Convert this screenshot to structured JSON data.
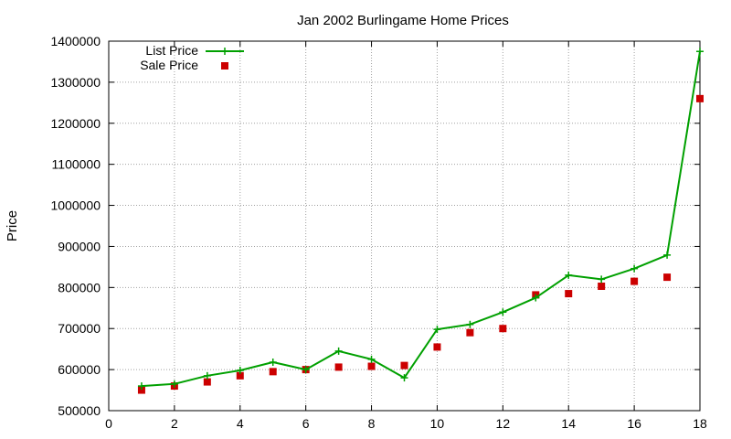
{
  "chart_data": {
    "type": "line",
    "title": "Jan 2002 Burlingame Home Prices",
    "xlabel": "",
    "ylabel": "Price",
    "xlim": [
      0,
      18
    ],
    "ylim": [
      500000,
      1400000
    ],
    "x_ticks": [
      0,
      2,
      4,
      6,
      8,
      10,
      12,
      14,
      16,
      18
    ],
    "y_ticks": [
      500000,
      600000,
      700000,
      800000,
      900000,
      1000000,
      1100000,
      1200000,
      1300000,
      1400000
    ],
    "grid": true,
    "legend_position": "top-left",
    "series": [
      {
        "name": "List Price",
        "style": "line-with-plus-markers",
        "color": "#00a000",
        "x": [
          1,
          2,
          3,
          4,
          5,
          6,
          7,
          8,
          9,
          10,
          11,
          12,
          13,
          14,
          15,
          16,
          17,
          18
        ],
        "values": [
          560000,
          565000,
          585000,
          598000,
          618000,
          600000,
          645000,
          625000,
          580000,
          698000,
          710000,
          740000,
          775000,
          830000,
          820000,
          846000,
          879000,
          1375000
        ]
      },
      {
        "name": "Sale Price",
        "style": "square-markers",
        "color": "#cc0000",
        "x": [
          1,
          2,
          3,
          4,
          5,
          6,
          7,
          8,
          9,
          10,
          11,
          12,
          13,
          14,
          15,
          16,
          17,
          18
        ],
        "values": [
          550000,
          560000,
          570000,
          585000,
          595000,
          600000,
          606000,
          608000,
          610000,
          655000,
          690000,
          700000,
          782000,
          785000,
          803000,
          815000,
          825000,
          1260000
        ]
      }
    ]
  }
}
